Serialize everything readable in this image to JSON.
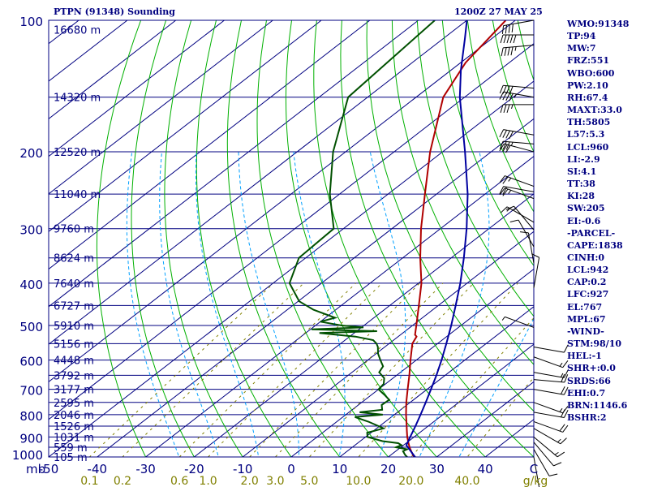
{
  "header": {
    "left_title": "PTPN (91348) Sounding",
    "right_title": "1200Z 27 MAY 25"
  },
  "chart_data": {
    "type": "skew-t log-p sounding",
    "title": "PTPN (91348) Sounding",
    "valid_time": "1200Z 27 MAY 25",
    "pressure_axis": {
      "range_mb": [
        1000,
        100
      ],
      "scale": "log",
      "unit_label": "mb",
      "tick_labels": [
        "100",
        "200",
        "300",
        "400",
        "500",
        "600",
        "700",
        "800",
        "900",
        "1000"
      ],
      "isobars_mb": [
        100,
        150,
        200,
        250,
        300,
        350,
        400,
        450,
        500,
        550,
        600,
        650,
        700,
        750,
        800,
        850,
        900,
        950,
        1000
      ]
    },
    "temperature_axis": {
      "unit": "C",
      "range_at_1000mb": [
        -50,
        50
      ],
      "tick_labels": [
        "-50",
        "-40",
        "-30",
        "-20",
        "-10",
        "0",
        "10",
        "20",
        "30",
        "40",
        "C"
      ]
    },
    "mixing_ratio_axis": {
      "unit_label": "g/kg",
      "tick_labels": [
        "0.1",
        "0.2",
        "0.6",
        "1.0",
        "2.0",
        "3.0",
        "5.0",
        "10.0",
        "20.0",
        "40.0"
      ]
    },
    "height_labels": [
      {
        "p": 105,
        "text": "16680 m"
      },
      {
        "p": 150,
        "text": "14320 m"
      },
      {
        "p": 200,
        "text": "12520 m"
      },
      {
        "p": 250,
        "text": "11040 m"
      },
      {
        "p": 300,
        "text": "9760 m"
      },
      {
        "p": 350,
        "text": "8624 m"
      },
      {
        "p": 400,
        "text": "7640 m"
      },
      {
        "p": 450,
        "text": "6727 m"
      },
      {
        "p": 500,
        "text": "5910 m"
      },
      {
        "p": 550,
        "text": "5156 m"
      },
      {
        "p": 600,
        "text": "4448 m"
      },
      {
        "p": 650,
        "text": "3792 m"
      },
      {
        "p": 700,
        "text": "3177 m"
      },
      {
        "p": 750,
        "text": "2595 m"
      },
      {
        "p": 800,
        "text": "2046 m"
      },
      {
        "p": 850,
        "text": "1526 m"
      },
      {
        "p": 900,
        "text": "1031 m"
      },
      {
        "p": 950,
        "text": "559 m"
      },
      {
        "p": 1000,
        "text": "105 m"
      }
    ],
    "series": [
      {
        "name": "Temperature",
        "color": "#b00000",
        "points": [
          {
            "p": 1006,
            "t": 26.0
          },
          {
            "p": 1000,
            "t": 25.4
          },
          {
            "p": 990,
            "t": 24.6
          },
          {
            "p": 970,
            "t": 23.2
          },
          {
            "p": 950,
            "t": 21.8
          },
          {
            "p": 925,
            "t": 20.2
          },
          {
            "p": 900,
            "t": 18.6
          },
          {
            "p": 870,
            "t": 16.8
          },
          {
            "p": 850,
            "t": 15.6
          },
          {
            "p": 800,
            "t": 12.4
          },
          {
            "p": 750,
            "t": 9.2
          },
          {
            "p": 700,
            "t": 6.0
          },
          {
            "p": 650,
            "t": 2.6
          },
          {
            "p": 600,
            "t": -1.2
          },
          {
            "p": 550,
            "t": -5.2
          },
          {
            "p": 530,
            "t": -6.2
          },
          {
            "p": 525,
            "t": -7.0
          },
          {
            "p": 500,
            "t": -9.2
          },
          {
            "p": 450,
            "t": -14.0
          },
          {
            "p": 400,
            "t": -19.4
          },
          {
            "p": 350,
            "t": -26.4
          },
          {
            "p": 300,
            "t": -34.0
          },
          {
            "p": 250,
            "t": -42.4
          },
          {
            "p": 200,
            "t": -52.6
          },
          {
            "p": 150,
            "t": -64.4
          },
          {
            "p": 125,
            "t": -69.0
          },
          {
            "p": 100,
            "t": -72.0
          }
        ]
      },
      {
        "name": "Dewpoint",
        "color": "#005000",
        "points": [
          {
            "p": 1006,
            "t": 24.5
          },
          {
            "p": 1000,
            "t": 23.9
          },
          {
            "p": 990,
            "t": 23.0
          },
          {
            "p": 970,
            "t": 21.5
          },
          {
            "p": 960,
            "t": 21.8
          },
          {
            "p": 950,
            "t": 19.0
          },
          {
            "p": 940,
            "t": 19.6
          },
          {
            "p": 930,
            "t": 18.4
          },
          {
            "p": 920,
            "t": 14.6
          },
          {
            "p": 900,
            "t": 10.4
          },
          {
            "p": 880,
            "t": 9.2
          },
          {
            "p": 860,
            "t": 11.4
          },
          {
            "p": 850,
            "t": 9.8
          },
          {
            "p": 830,
            "t": 6.5
          },
          {
            "p": 810,
            "t": 2.5
          },
          {
            "p": 800,
            "t": 7.6
          },
          {
            "p": 790,
            "t": 2.2
          },
          {
            "p": 780,
            "t": 6.2
          },
          {
            "p": 760,
            "t": 4.8
          },
          {
            "p": 740,
            "t": 5.0
          },
          {
            "p": 720,
            "t": 2.6
          },
          {
            "p": 700,
            "t": 0.0
          },
          {
            "p": 680,
            "t": -0.4
          },
          {
            "p": 660,
            "t": -1.8
          },
          {
            "p": 640,
            "t": -4.4
          },
          {
            "p": 620,
            "t": -5.2
          },
          {
            "p": 600,
            "t": -7.4
          },
          {
            "p": 580,
            "t": -9.6
          },
          {
            "p": 560,
            "t": -11.4
          },
          {
            "p": 550,
            "t": -12.6
          },
          {
            "p": 540,
            "t": -14.2
          },
          {
            "p": 530,
            "t": -18.8
          },
          {
            "p": 520,
            "t": -27.2
          },
          {
            "p": 515,
            "t": -15.8
          },
          {
            "p": 510,
            "t": -29.8
          },
          {
            "p": 505,
            "t": -19.6
          },
          {
            "p": 500,
            "t": -24.6
          },
          {
            "p": 490,
            "t": -30.0
          },
          {
            "p": 480,
            "t": -28.0
          },
          {
            "p": 460,
            "t": -34.6
          },
          {
            "p": 440,
            "t": -39.8
          },
          {
            "p": 400,
            "t": -46.6
          },
          {
            "p": 350,
            "t": -51.4
          },
          {
            "p": 300,
            "t": -52.0
          },
          {
            "p": 250,
            "t": -62.0
          },
          {
            "p": 200,
            "t": -72.6
          },
          {
            "p": 150,
            "t": -84.0
          },
          {
            "p": 100,
            "t": -86.6
          }
        ]
      },
      {
        "name": "Parcel",
        "color": "#0000a0",
        "points": [
          {
            "p": 1006,
            "t": 26.0
          },
          {
            "p": 940,
            "t": 20.6
          },
          {
            "p": 900,
            "t": 19.2
          },
          {
            "p": 850,
            "t": 17.4
          },
          {
            "p": 800,
            "t": 15.4
          },
          {
            "p": 750,
            "t": 13.2
          },
          {
            "p": 700,
            "t": 10.8
          },
          {
            "p": 650,
            "t": 8.2
          },
          {
            "p": 600,
            "t": 5.2
          },
          {
            "p": 550,
            "t": 1.8
          },
          {
            "p": 500,
            "t": -2.0
          },
          {
            "p": 450,
            "t": -6.4
          },
          {
            "p": 400,
            "t": -11.4
          },
          {
            "p": 350,
            "t": -17.4
          },
          {
            "p": 300,
            "t": -24.6
          },
          {
            "p": 250,
            "t": -33.6
          },
          {
            "p": 200,
            "t": -45.4
          },
          {
            "p": 150,
            "t": -61.0
          },
          {
            "p": 130,
            "t": -68.0
          },
          {
            "p": 110,
            "t": -75.6
          },
          {
            "p": 100,
            "t": -80.0
          }
        ]
      }
    ],
    "wind_barbs": [
      {
        "p": 100,
        "dir": 260,
        "spd": 40
      },
      {
        "p": 108,
        "dir": 270,
        "spd": 50
      },
      {
        "p": 114,
        "dir": 265,
        "spd": 45
      },
      {
        "p": 143,
        "dir": 275,
        "spd": 40
      },
      {
        "p": 150,
        "dir": 280,
        "spd": 45
      },
      {
        "p": 156,
        "dir": 270,
        "spd": 35
      },
      {
        "p": 183,
        "dir": 280,
        "spd": 40
      },
      {
        "p": 192,
        "dir": 275,
        "spd": 35
      },
      {
        "p": 200,
        "dir": 285,
        "spd": 30
      },
      {
        "p": 240,
        "dir": 290,
        "spd": 25
      },
      {
        "p": 247,
        "dir": 280,
        "spd": 20
      },
      {
        "p": 256,
        "dir": 290,
        "spd": 25
      },
      {
        "p": 290,
        "dir": 300,
        "spd": 15
      },
      {
        "p": 302,
        "dir": 320,
        "spd": 15
      },
      {
        "p": 330,
        "dir": 330,
        "spd": 10
      },
      {
        "p": 360,
        "dir": 350,
        "spd": 10
      },
      {
        "p": 410,
        "dir": 10,
        "spd": 10
      },
      {
        "p": 505,
        "dir": 290,
        "spd": 5
      },
      {
        "p": 560,
        "dir": 100,
        "spd": 10
      },
      {
        "p": 590,
        "dir": 110,
        "spd": 15
      },
      {
        "p": 640,
        "dir": 100,
        "spd": 15
      },
      {
        "p": 665,
        "dir": 95,
        "spd": 20
      },
      {
        "p": 700,
        "dir": 100,
        "spd": 20
      },
      {
        "p": 750,
        "dir": 110,
        "spd": 15
      },
      {
        "p": 790,
        "dir": 100,
        "spd": 20
      },
      {
        "p": 830,
        "dir": 110,
        "spd": 20
      },
      {
        "p": 860,
        "dir": 120,
        "spd": 15
      },
      {
        "p": 900,
        "dir": 130,
        "spd": 15
      },
      {
        "p": 925,
        "dir": 140,
        "spd": 10
      },
      {
        "p": 960,
        "dir": 150,
        "spd": 10
      },
      {
        "p": 1000,
        "dir": 170,
        "spd": 5
      }
    ],
    "indices": [
      "WMO:91348",
      "TP:94",
      "MW:7",
      "FRZ:551",
      "WBO:600",
      "PW:2.10",
      "RH:67.4",
      "MAXT:33.0",
      "TH:5805",
      "L57:5.3",
      "LCL:960",
      "LI:-2.9",
      "SI:4.1",
      "TT:38",
      "KI:28",
      "SW:205",
      "EI:-0.6",
      "-PARCEL-",
      "CAPE:1838",
      "CINH:0",
      "LCL:942",
      "CAP:0.2",
      "LFC:927",
      "EL:767",
      "MPL:67",
      "-WIND-",
      "STM:98/10",
      "HEL:-1",
      "SHR+:0.0",
      "SRDS:66",
      "EHI:0.7",
      "BRN:1146.6",
      "BSHR:2"
    ],
    "colors": {
      "isobar": "#000080",
      "isotherm": "#000080",
      "dry_adiabat": "#00b000",
      "moist_adiabat": "#00a0ff",
      "mixing_ratio": "#808000",
      "frame": "#000080",
      "axis_text": "#000080",
      "mixing_text": "#808000"
    }
  }
}
